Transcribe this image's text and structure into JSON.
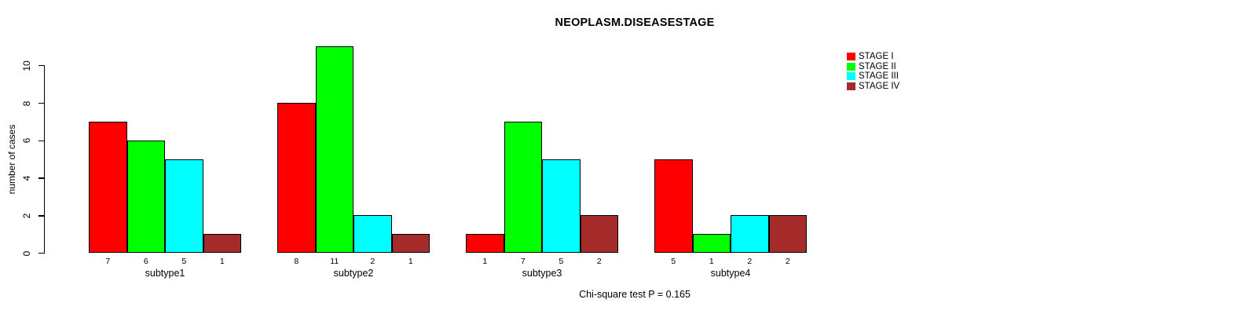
{
  "chart_data": {
    "type": "bar",
    "title": "NEOPLASM.DISEASESTAGE",
    "ylabel": "number of cases",
    "xlabel": "",
    "annotation": "Chi-square test P = 0.165",
    "categories": [
      "subtype1",
      "subtype2",
      "subtype3",
      "subtype4"
    ],
    "series": [
      {
        "name": "STAGE I",
        "color": "#FF0000",
        "values": [
          7,
          8,
          1,
          5
        ]
      },
      {
        "name": "STAGE II",
        "color": "#00FF00",
        "values": [
          6,
          11,
          7,
          1
        ]
      },
      {
        "name": "STAGE III",
        "color": "#00FFFF",
        "values": [
          5,
          2,
          5,
          2
        ]
      },
      {
        "name": "STAGE IV",
        "color": "#A52A2A",
        "values": [
          1,
          1,
          2,
          2
        ]
      }
    ],
    "bar_value_labels": [
      [
        7,
        6,
        5,
        1
      ],
      [
        8,
        11,
        2,
        1
      ],
      [
        1,
        7,
        5,
        2
      ],
      [
        5,
        1,
        2,
        2
      ]
    ],
    "yticks": [
      0,
      2,
      4,
      6,
      8,
      10
    ],
    "ylim": [
      0,
      11
    ],
    "grid": false,
    "legend_position": "top-right"
  }
}
